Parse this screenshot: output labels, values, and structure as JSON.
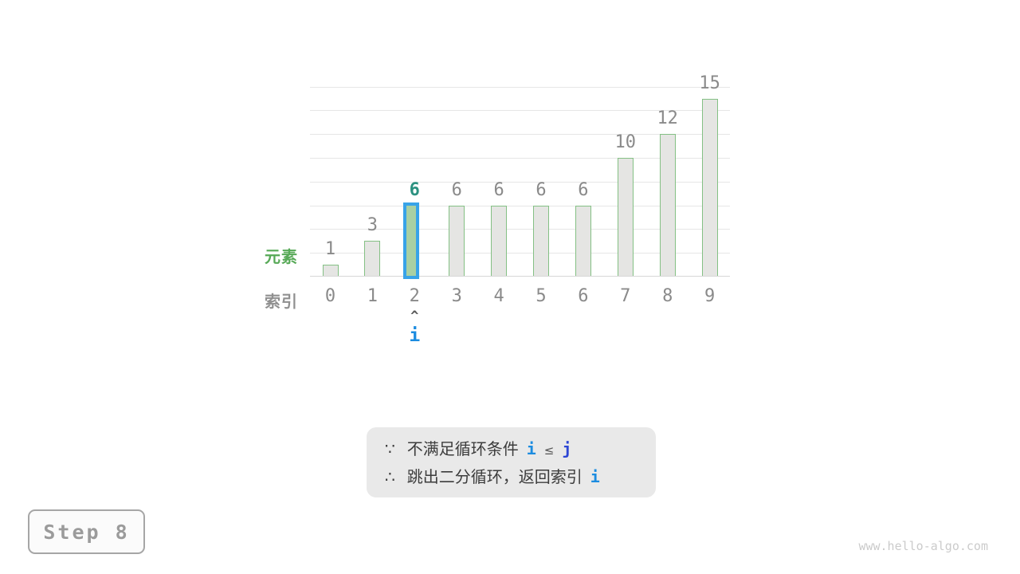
{
  "chart_data": {
    "type": "bar",
    "categories": [
      "0",
      "1",
      "2",
      "3",
      "4",
      "5",
      "6",
      "7",
      "8",
      "9"
    ],
    "values": [
      1,
      3,
      6,
      6,
      6,
      6,
      6,
      10,
      12,
      15
    ],
    "highlight_index": 2,
    "title": "",
    "xlabel": "索引",
    "ylabel": "元素",
    "ylim": [
      0,
      16
    ],
    "grid": true,
    "gridline_step": 2,
    "legend": "none",
    "bar_fill": "#e5e5e3",
    "bar_border": "#84c084",
    "highlight_fill": "#a9d0a3",
    "highlight_border": "#38a3e8",
    "highlight_value_color": "#2b9180",
    "value_label_color": "#8a8a8a"
  },
  "axis_labels": {
    "element": "元素",
    "index": "索引"
  },
  "pointer": {
    "caret": "^",
    "label": "i"
  },
  "note": {
    "because_symbol": "∵",
    "line1_text": "不满足循环条件",
    "line1_i": "i",
    "line1_op": "≤",
    "line1_j": "j",
    "therefore_symbol": "∴",
    "line2_text": "跳出二分循环，返回索引",
    "line2_i": "i"
  },
  "step_badge": "Step 8",
  "watermark": "www.hello-algo.com",
  "colors": {
    "accent_blue": "#1c8ce0",
    "accent_indigo": "#2d46d4",
    "accent_teal": "#2b9180",
    "accent_green": "#57a957",
    "note_background": "#e9e9e9",
    "text_gray": "#8a8a8a"
  }
}
